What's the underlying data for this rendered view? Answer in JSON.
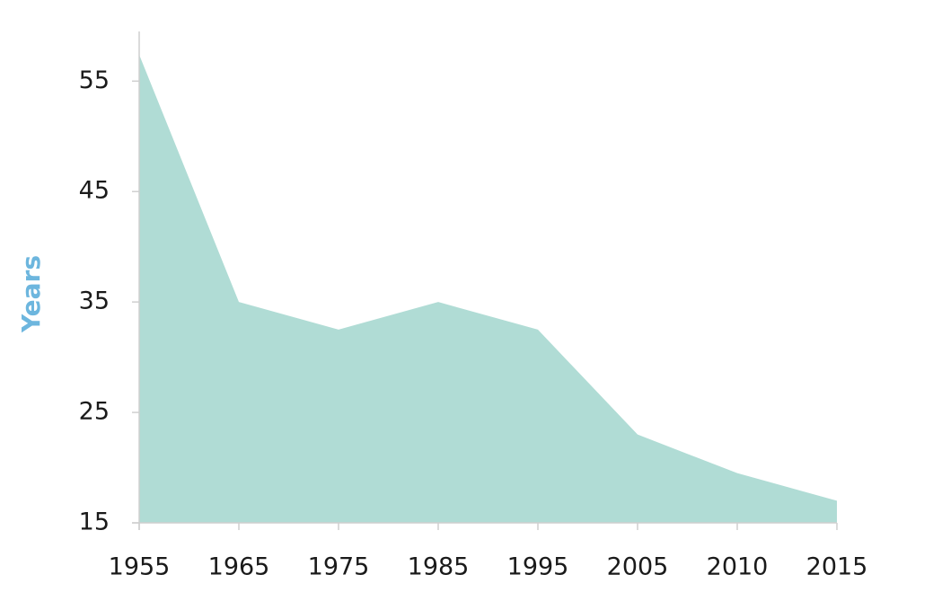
{
  "chart_data": {
    "type": "area",
    "y_label": "Years",
    "categories": [
      "1955",
      "1965",
      "1975",
      "1985",
      "1995",
      "2005",
      "2010",
      "2015"
    ],
    "values": [
      57.4,
      35,
      32.5,
      35,
      32.5,
      23,
      19.5,
      17
    ],
    "color": "#b0dcd5",
    "ylim": [
      15,
      59.5
    ],
    "yticks": [
      15,
      25,
      35,
      45,
      55
    ],
    "grid": false
  }
}
